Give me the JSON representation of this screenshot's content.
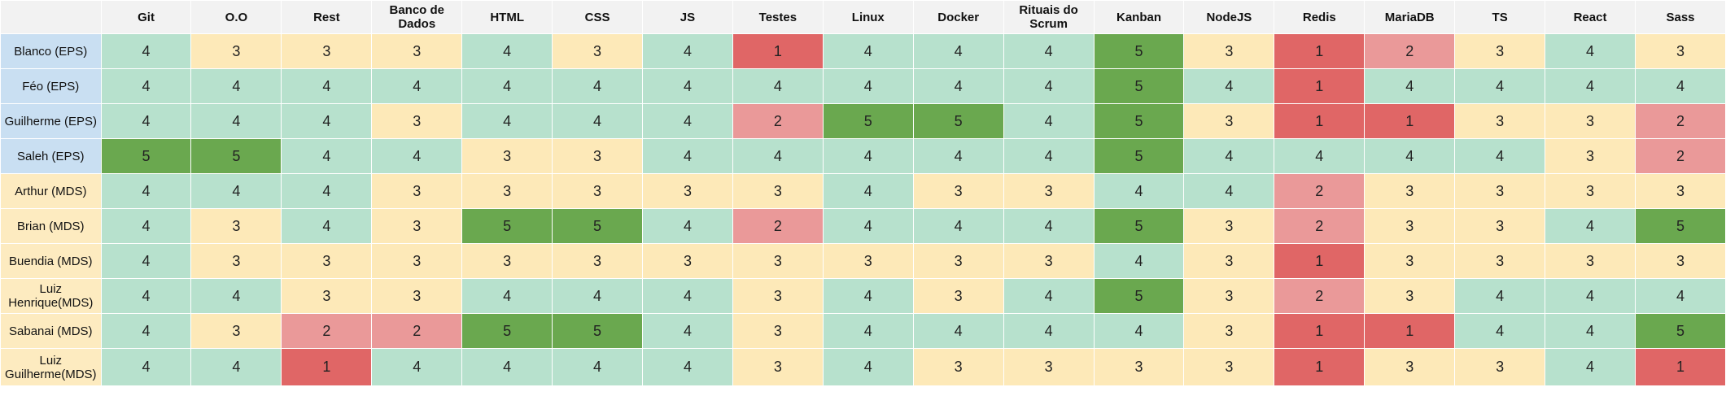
{
  "sheet": {
    "columns": [
      "Git",
      "O.O",
      "Rest",
      "Banco de Dados",
      "HTML",
      "CSS",
      "JS",
      "Testes",
      "Linux",
      "Docker",
      "Rituais do Scrum",
      "Kanban",
      "NodeJS",
      "Redis",
      "MariaDB",
      "TS",
      "React",
      "Sass"
    ],
    "rows": [
      {
        "name": "Blanco (EPS)",
        "group": "eps",
        "scores": [
          4,
          3,
          3,
          3,
          4,
          3,
          4,
          1,
          4,
          4,
          4,
          5,
          3,
          1,
          2,
          3,
          4,
          3
        ]
      },
      {
        "name": "Féo (EPS)",
        "group": "eps",
        "scores": [
          4,
          4,
          4,
          4,
          4,
          4,
          4,
          4,
          4,
          4,
          4,
          5,
          4,
          1,
          4,
          4,
          4,
          4
        ]
      },
      {
        "name": "Guilherme (EPS)",
        "group": "eps",
        "scores": [
          4,
          4,
          4,
          3,
          4,
          4,
          4,
          2,
          5,
          5,
          4,
          5,
          3,
          1,
          1,
          3,
          3,
          2
        ]
      },
      {
        "name": "Saleh (EPS)",
        "group": "eps",
        "scores": [
          5,
          5,
          4,
          4,
          3,
          3,
          4,
          4,
          4,
          4,
          4,
          5,
          4,
          4,
          4,
          4,
          3,
          2
        ]
      },
      {
        "name": "Arthur (MDS)",
        "group": "mds",
        "scores": [
          4,
          4,
          4,
          3,
          3,
          3,
          3,
          3,
          4,
          3,
          3,
          4,
          4,
          2,
          3,
          3,
          3,
          3
        ]
      },
      {
        "name": "Brian (MDS)",
        "group": "mds",
        "scores": [
          4,
          3,
          4,
          3,
          5,
          5,
          4,
          2,
          4,
          4,
          4,
          5,
          3,
          2,
          3,
          3,
          4,
          5
        ]
      },
      {
        "name": "Buendia (MDS)",
        "group": "mds",
        "scores": [
          4,
          3,
          3,
          3,
          3,
          3,
          3,
          3,
          3,
          3,
          3,
          4,
          3,
          1,
          3,
          3,
          3,
          3
        ]
      },
      {
        "name": "Luiz Henrique(MDS)",
        "group": "mds",
        "scores": [
          4,
          4,
          3,
          3,
          4,
          4,
          4,
          3,
          4,
          3,
          4,
          5,
          3,
          2,
          3,
          4,
          4,
          4
        ]
      },
      {
        "name": "Sabanai (MDS)",
        "group": "mds",
        "scores": [
          4,
          3,
          2,
          2,
          5,
          5,
          4,
          3,
          4,
          4,
          4,
          4,
          3,
          1,
          1,
          4,
          4,
          5
        ]
      },
      {
        "name": "Luiz Guilherme(MDS)",
        "group": "mds",
        "scores": [
          4,
          4,
          1,
          4,
          4,
          4,
          4,
          3,
          4,
          3,
          3,
          3,
          3,
          1,
          3,
          3,
          4,
          1
        ]
      }
    ]
  },
  "colors": {
    "score_1": "#e06666",
    "score_2": "#ea9999",
    "score_3": "#fde9b8",
    "score_4": "#b7e1cd",
    "score_5": "#6aa84f",
    "eps_name": "#c9dff2",
    "mds_name": "#fdebc0",
    "header": "#f2f2f2"
  }
}
